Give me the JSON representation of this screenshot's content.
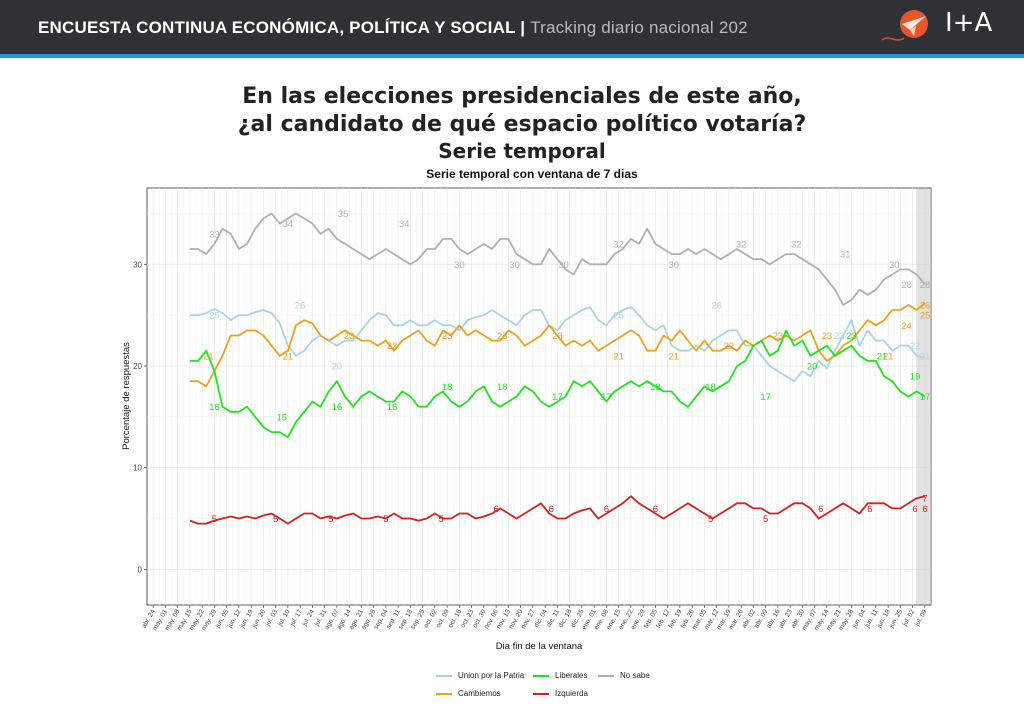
{
  "header": {
    "title": "ENCUESTA CONTINUA ECONÓMICA, POLÍTICA Y SOCIAL",
    "separator": "|",
    "subtitle": "Tracking diario nacional 202",
    "logo_text": "I+A"
  },
  "titles": {
    "line1": "En las elecciones presidenciales de este año,",
    "line2": "¿al candidato de qué espacio político votaría?",
    "line3": "Serie temporal"
  },
  "colors": {
    "Union por la Patria": "#a8d5e5",
    "Cambiemos": "#f0a020",
    "Liberales": "#1ee61e",
    "Izquierda": "#d42020",
    "No sabe": "#b0b0b0"
  },
  "chart_data": {
    "type": "line",
    "title": "Serie temporal con ventana de 7 dias",
    "xlabel": "Dia fin de la ventana",
    "ylabel": "Porcentaje de respuestas",
    "ylim": [
      -3.5,
      37.5
    ],
    "yticks": [
      0,
      10,
      20,
      30
    ],
    "grid": true,
    "legend_position": "bottom",
    "x_tick_labels": [
      "abr. 24",
      "may. 01",
      "may. 08",
      "may. 15",
      "may. 22",
      "may. 29",
      "jun. 05",
      "jun. 12",
      "jun. 19",
      "jun. 26",
      "jul. 03",
      "jul. 10",
      "jul. 17",
      "jul. 24",
      "jul. 31",
      "ago. 07",
      "ago. 14",
      "ago. 21",
      "ago. 28",
      "sep. 04",
      "sep. 11",
      "sep. 18",
      "sep. 25",
      "oct. 02",
      "oct. 09",
      "oct. 16",
      "oct. 23",
      "oct. 30",
      "nov. 06",
      "nov. 13",
      "nov. 20",
      "nov. 27",
      "dic. 04",
      "dic. 11",
      "dic. 18",
      "dic. 25",
      "ene. 01",
      "ene. 08",
      "ene. 15",
      "ene. 22",
      "ene. 29",
      "feb. 05",
      "feb. 12",
      "feb. 19",
      "feb. 26",
      "mar. 05",
      "mar. 12",
      "mar. 19",
      "mar. 26",
      "abr. 02",
      "abr. 09",
      "abr. 16",
      "abr. 23",
      "abr. 30",
      "may. 07",
      "may. 14",
      "may. 21",
      "may. 28",
      "jun. 04",
      "jun. 11",
      "jun. 18",
      "jun. 25",
      "jul. 02",
      "jul. 09"
    ],
    "data_start_week": 3,
    "data_end_week": 63,
    "highlight_weeks": [
      62.3,
      63.6
    ],
    "series": [
      {
        "name": "Union por la Patria",
        "values": [
          25.0,
          25.0,
          25.2,
          25.6,
          25.2,
          24.5,
          25.0,
          25.0,
          25.3,
          25.5,
          25.2,
          24.2,
          22.0,
          21.0,
          21.5,
          22.5,
          23.0,
          22.5,
          22.0,
          22.5,
          22.5,
          23.5,
          24.5,
          25.2,
          25.0,
          24.0,
          24.0,
          24.5,
          24.0,
          24.0,
          24.5,
          24.0,
          24.0,
          23.5,
          24.5,
          24.8,
          25.0,
          25.5,
          25.0,
          24.5,
          24.0,
          25.0,
          25.5,
          25.5,
          24.0,
          23.5,
          24.5,
          25.0,
          25.5,
          25.8,
          24.5,
          24.0,
          25.0,
          25.5,
          25.8,
          25.0,
          24.0,
          23.5,
          24.0,
          22.0,
          21.5,
          21.5,
          22.0,
          21.5,
          22.5,
          23.0,
          23.5,
          23.5,
          22.0,
          22.0,
          21.0,
          20.0,
          19.5,
          19.0,
          18.5,
          19.5,
          19.0,
          20.5,
          19.8,
          21.5,
          23.0,
          24.5,
          22.0,
          23.5,
          22.5,
          22.5,
          21.5,
          22.0,
          22.0,
          21.0,
          20.8
        ],
        "labels": [
          [
            5,
            25
          ],
          [
            12,
            26
          ],
          [
            15,
            20
          ],
          [
            38,
            25
          ],
          [
            46,
            26
          ],
          [
            56,
            23
          ],
          [
            62.2,
            22
          ],
          [
            63.5,
            21
          ]
        ]
      },
      {
        "name": "Cambiemos",
        "values": [
          18.5,
          18.5,
          18.0,
          19.5,
          21.0,
          23.0,
          23.0,
          23.5,
          23.5,
          23.0,
          22.0,
          21.0,
          21.5,
          24.0,
          24.5,
          24.2,
          23.0,
          22.5,
          23.0,
          23.5,
          23.0,
          22.5,
          22.5,
          22.0,
          22.5,
          21.5,
          22.5,
          23.0,
          23.5,
          22.5,
          22.0,
          23.5,
          23.0,
          24.0,
          23.0,
          23.5,
          23.0,
          22.5,
          22.5,
          23.5,
          23.0,
          22.0,
          22.5,
          23.0,
          24.0,
          23.0,
          22.0,
          22.5,
          22.0,
          22.5,
          21.5,
          22.0,
          22.5,
          23.0,
          23.5,
          23.0,
          21.5,
          21.5,
          23.0,
          22.5,
          23.5,
          22.5,
          21.5,
          22.5,
          21.5,
          21.5,
          22.0,
          21.5,
          22.5,
          22.0,
          22.5,
          23.0,
          22.5,
          23.0,
          22.5,
          23.0,
          23.5,
          21.5,
          20.5,
          21.0,
          22.0,
          22.5,
          23.5,
          24.5,
          24.0,
          24.5,
          25.5,
          25.5,
          26.0,
          25.5,
          26.2
        ],
        "labels": [
          [
            4.5,
            21
          ],
          [
            11,
            21
          ],
          [
            16,
            23
          ],
          [
            19.5,
            22
          ],
          [
            24,
            23
          ],
          [
            28.5,
            23
          ],
          [
            33,
            23
          ],
          [
            38,
            21
          ],
          [
            42.5,
            21
          ],
          [
            47,
            22
          ],
          [
            51,
            23
          ],
          [
            55,
            23
          ],
          [
            60,
            21
          ],
          [
            61.5,
            24
          ],
          [
            64.2,
            25
          ],
          [
            67.4,
            26
          ]
        ]
      },
      {
        "name": "Liberales",
        "values": [
          20.5,
          20.5,
          21.5,
          19.5,
          16.0,
          15.5,
          15.5,
          16.0,
          15.0,
          14.0,
          13.5,
          13.5,
          13.0,
          14.5,
          15.5,
          16.5,
          16.0,
          17.5,
          18.5,
          17.0,
          16.0,
          17.0,
          17.5,
          17.0,
          16.5,
          16.5,
          17.5,
          17.0,
          16.0,
          16.0,
          17.0,
          17.5,
          16.5,
          16.0,
          16.5,
          17.5,
          18.0,
          16.5,
          16.0,
          16.5,
          17.0,
          18.0,
          17.5,
          16.5,
          16.0,
          16.5,
          17.0,
          18.5,
          18.0,
          18.5,
          17.5,
          16.5,
          17.5,
          18.0,
          18.5,
          18.0,
          18.5,
          18.0,
          17.5,
          17.5,
          16.5,
          16.0,
          17.0,
          18.0,
          17.5,
          18.0,
          18.5,
          20.0,
          20.5,
          22.0,
          22.5,
          21.0,
          21.5,
          23.5,
          22.0,
          22.5,
          21.0,
          21.5,
          22.0,
          21.0,
          21.5,
          22.0,
          21.0,
          20.5,
          20.5,
          19.0,
          18.5,
          17.5,
          17.0,
          17.5,
          17.0
        ],
        "labels": [
          [
            5,
            16
          ],
          [
            10.5,
            15
          ],
          [
            15,
            16
          ],
          [
            19.5,
            16
          ],
          [
            24,
            18
          ],
          [
            28.5,
            18
          ],
          [
            33,
            17
          ],
          [
            37,
            17
          ],
          [
            41,
            18
          ],
          [
            45.5,
            18
          ],
          [
            50,
            17
          ],
          [
            53.8,
            20
          ],
          [
            57,
            23
          ],
          [
            59.5,
            21
          ],
          [
            62.2,
            19
          ],
          [
            63.5,
            17
          ]
        ]
      },
      {
        "name": "Izquierda",
        "values": [
          4.8,
          4.5,
          4.5,
          4.8,
          5.0,
          5.2,
          5.0,
          5.2,
          5.0,
          5.3,
          5.5,
          5.0,
          4.5,
          5.0,
          5.5,
          5.5,
          5.0,
          5.2,
          5.0,
          5.3,
          5.5,
          5.0,
          5.0,
          5.2,
          5.0,
          5.5,
          5.0,
          5.0,
          4.8,
          5.0,
          5.5,
          5.0,
          5.0,
          5.5,
          5.5,
          5.0,
          5.2,
          5.5,
          6.0,
          5.5,
          5.0,
          5.5,
          6.0,
          6.5,
          5.5,
          5.0,
          5.0,
          5.5,
          5.8,
          6.0,
          5.0,
          5.5,
          6.0,
          6.5,
          7.2,
          6.5,
          6.0,
          5.5,
          5.0,
          5.5,
          6.0,
          6.5,
          6.0,
          5.5,
          5.0,
          5.5,
          6.0,
          6.5,
          6.5,
          6.0,
          6.0,
          5.5,
          5.5,
          6.0,
          6.5,
          6.5,
          6.0,
          5.0,
          5.5,
          6.0,
          6.5,
          6.0,
          5.5,
          6.5,
          6.5,
          6.5,
          6.0,
          6.0,
          6.5,
          7.0,
          7.2
        ],
        "labels": [
          [
            5,
            5
          ],
          [
            10,
            5
          ],
          [
            14.5,
            5
          ],
          [
            19,
            5
          ],
          [
            23.5,
            5
          ],
          [
            28,
            6
          ],
          [
            32.5,
            6
          ],
          [
            37,
            6
          ],
          [
            41,
            6
          ],
          [
            45.5,
            5
          ],
          [
            50,
            5
          ],
          [
            54.5,
            6
          ],
          [
            58.5,
            6
          ],
          [
            62.2,
            6
          ],
          [
            63.5,
            6
          ],
          [
            65,
            7
          ]
        ]
      },
      {
        "name": "No sabe",
        "values": [
          31.5,
          31.5,
          31.0,
          32.0,
          33.5,
          33.0,
          31.5,
          32.0,
          33.5,
          34.5,
          35.0,
          34.0,
          34.5,
          35.0,
          34.5,
          34.0,
          33.0,
          33.5,
          32.5,
          32.0,
          31.5,
          31.0,
          30.5,
          31.0,
          31.5,
          31.0,
          30.5,
          30.0,
          30.5,
          31.5,
          31.5,
          32.5,
          32.5,
          31.5,
          31.0,
          31.5,
          32.0,
          31.5,
          32.5,
          32.5,
          31.0,
          30.5,
          30.0,
          30.0,
          31.5,
          30.5,
          29.5,
          29.0,
          30.5,
          30.0,
          30.0,
          30.0,
          31.0,
          31.5,
          32.5,
          32.0,
          33.5,
          32.0,
          31.5,
          31.0,
          31.0,
          31.5,
          31.0,
          31.5,
          31.0,
          30.5,
          31.0,
          31.5,
          31.0,
          30.5,
          30.5,
          30.0,
          30.5,
          31.0,
          31.0,
          30.5,
          30.0,
          29.5,
          28.5,
          27.5,
          26.0,
          26.5,
          27.5,
          27.0,
          27.5,
          28.5,
          29.0,
          29.5,
          29.5,
          29.0,
          28.0
        ],
        "labels": [
          [
            5,
            33
          ],
          [
            11,
            34
          ],
          [
            15.5,
            35
          ],
          [
            20.5,
            34
          ],
          [
            25,
            30
          ],
          [
            29.5,
            30
          ],
          [
            33.5,
            30
          ],
          [
            38,
            32
          ],
          [
            42.5,
            30
          ],
          [
            48,
            32
          ],
          [
            52.5,
            32
          ],
          [
            56.5,
            31
          ],
          [
            60.5,
            30
          ],
          [
            61.5,
            28
          ],
          [
            64.2,
            28
          ],
          [
            67.4,
            28
          ]
        ]
      }
    ]
  },
  "legend": {
    "items": [
      {
        "name": "Union por la Patria"
      },
      {
        "name": "Liberales"
      },
      {
        "name": "No sabe"
      },
      {
        "name": "Cambiemos"
      },
      {
        "name": "Izquierda"
      }
    ]
  }
}
